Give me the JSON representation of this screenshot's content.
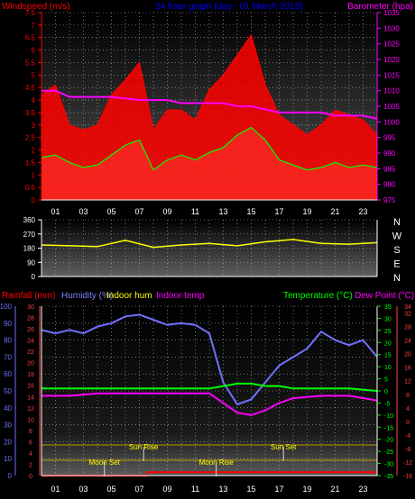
{
  "chart_data": [
    {
      "type": "line",
      "panel": "wind-baro",
      "title": "24 hour graph (day - 01 March 2015)",
      "left_axis": {
        "label": "Windspeed (m/s)",
        "range": [
          0,
          7.5
        ],
        "ticks": [
          "0",
          "0.5",
          "1",
          "1.5",
          "2",
          "2.5",
          "3",
          "3.5",
          "4",
          "4.5",
          "5",
          "5.5",
          "6",
          "6.5",
          "7",
          "7.5"
        ]
      },
      "right_axis": {
        "label": "Barometer (hpa)",
        "range": [
          975,
          1035
        ],
        "ticks": [
          "975",
          "980",
          "985",
          "990",
          "995",
          "1000",
          "1005",
          "1010",
          "1015",
          "1020",
          "1025",
          "1030",
          "1035"
        ]
      },
      "x_ticks": [
        "01",
        "03",
        "05",
        "07",
        "09",
        "11",
        "13",
        "15",
        "17",
        "19",
        "21",
        "23"
      ],
      "x_range": [
        0,
        24
      ],
      "wind_avg": {
        "x": [
          0,
          1,
          2,
          3,
          4,
          5,
          6,
          7,
          8,
          9,
          10,
          11,
          12,
          13,
          14,
          15,
          16,
          17,
          18,
          19,
          20,
          21,
          22,
          23,
          24
        ],
        "y": [
          1.7,
          1.8,
          1.5,
          1.3,
          1.4,
          1.8,
          2.2,
          2.4,
          1.2,
          1.6,
          1.8,
          1.6,
          1.9,
          2.1,
          2.6,
          2.9,
          2.4,
          1.6,
          1.4,
          1.2,
          1.3,
          1.5,
          1.3,
          1.4,
          1.3
        ]
      },
      "wind_gust": {
        "x": [
          0,
          1,
          2,
          3,
          4,
          5,
          6,
          7,
          8,
          9,
          10,
          11,
          12,
          13,
          14,
          15,
          16,
          17,
          18,
          19,
          20,
          21,
          22,
          23,
          24
        ],
        "y": [
          4.2,
          4.6,
          3.0,
          2.8,
          3.0,
          4.2,
          4.8,
          5.5,
          2.8,
          3.6,
          3.6,
          3.2,
          4.4,
          5.0,
          5.8,
          6.6,
          4.6,
          3.4,
          3.0,
          2.6,
          3.0,
          3.6,
          3.4,
          3.2,
          2.6
        ]
      },
      "barometer": {
        "x": [
          0,
          1,
          1.5,
          2,
          3,
          5,
          7,
          8,
          9,
          10,
          11,
          12,
          13,
          14,
          15,
          16,
          17,
          18,
          19,
          20,
          21,
          22,
          23,
          24
        ],
        "y": [
          1010,
          1010,
          1009,
          1008,
          1008,
          1008,
          1007,
          1007,
          1007,
          1006,
          1006,
          1006,
          1006,
          1005,
          1005,
          1004,
          1003,
          1003,
          1003,
          1003,
          1002,
          1002,
          1002,
          1001
        ]
      },
      "colors": {
        "wind_gust": "#ff0000",
        "wind_avg": "#00ff00",
        "wind_fill": "#d2f5d2",
        "barometer": "#ff00ff",
        "axis_left": "#ff0000",
        "axis_right": "#ff00ff",
        "title": "#0000ff"
      }
    },
    {
      "type": "line",
      "panel": "wind-direction",
      "left_axis": {
        "range": [
          0,
          360
        ],
        "ticks": [
          "0",
          "90",
          "180",
          "270",
          "360"
        ]
      },
      "right_labels": [
        "N",
        "W",
        "S",
        "E",
        "N"
      ],
      "x_range": [
        0,
        24
      ],
      "direction": {
        "x": [
          0,
          2,
          4,
          6,
          8,
          10,
          12,
          14,
          16,
          18,
          20,
          22,
          24
        ],
        "y": [
          200,
          195,
          190,
          230,
          185,
          200,
          210,
          195,
          220,
          235,
          210,
          205,
          215
        ]
      },
      "colors": {
        "direction": "#ffff00",
        "axis": "#ffffff"
      }
    },
    {
      "type": "line",
      "panel": "temp-humidity",
      "header_labels": [
        {
          "text": "Rainfall (mm)",
          "color": "#ff0000"
        },
        {
          "text": "Humidity (%)",
          "color": "#8080ff"
        },
        {
          "text": "Indoor hum",
          "color": "#ffff00"
        },
        {
          "text": "Indoor temp",
          "color": "#ff00ff"
        },
        {
          "text": "Temperature (°C)",
          "color": "#00ff00"
        },
        {
          "text": "Dew Point (°C)",
          "color": "#ff00ff"
        }
      ],
      "humidity_axis": {
        "range": [
          0,
          100
        ],
        "ticks": [
          "0",
          "10",
          "20",
          "30",
          "40",
          "50",
          "60",
          "70",
          "80",
          "90",
          "100"
        ]
      },
      "rain_axis": {
        "range": [
          0,
          30
        ],
        "ticks": [
          "0",
          "2",
          "4",
          "6",
          "8",
          "10",
          "12",
          "14",
          "16",
          "18",
          "20",
          "22",
          "24",
          "26",
          "28",
          "30"
        ]
      },
      "temp_axis": {
        "range": [
          -35,
          35
        ],
        "ticks": [
          "-35",
          "-30",
          "-25",
          "-20",
          "-15",
          "-10",
          "-5",
          "0",
          "5",
          "10",
          "15",
          "20",
          "25",
          "30",
          "35"
        ]
      },
      "indoor_axis": {
        "range": [
          -16,
          34
        ],
        "ticks": [
          "-16",
          "-12",
          "-8",
          "-4",
          "0",
          "4",
          "8",
          "12",
          "16",
          "20",
          "24",
          "28",
          "32",
          "34"
        ]
      },
      "x_ticks": [
        "01",
        "03",
        "05",
        "07",
        "09",
        "11",
        "13",
        "15",
        "17",
        "19",
        "21",
        "23"
      ],
      "x_range": [
        0,
        24
      ],
      "humidity": {
        "x": [
          0,
          1,
          2,
          3,
          4,
          5,
          6,
          7,
          8,
          9,
          10,
          11,
          12,
          13,
          14,
          15,
          16,
          17,
          18,
          19,
          20,
          21,
          22,
          23,
          24
        ],
        "y": [
          86,
          84,
          86,
          84,
          88,
          90,
          94,
          95,
          92,
          89,
          90,
          89,
          84,
          55,
          42,
          45,
          55,
          65,
          70,
          75,
          85,
          80,
          77,
          80,
          70
        ]
      },
      "temperature": {
        "x": [
          0,
          2,
          4,
          6,
          8,
          10,
          12,
          13,
          14,
          15,
          16,
          17,
          18,
          20,
          22,
          24
        ],
        "y": [
          1,
          1,
          1,
          1,
          1,
          1,
          1,
          2,
          3,
          3,
          2,
          2,
          1,
          1,
          1,
          0
        ]
      },
      "dew_point": {
        "x": [
          0,
          2,
          4,
          6,
          8,
          10,
          12,
          13,
          14,
          15,
          16,
          17,
          18,
          20,
          22,
          24
        ],
        "y": [
          -2,
          -2,
          -1,
          -1,
          -1,
          -1,
          -1,
          -5,
          -9,
          -10,
          -8,
          -5,
          -3,
          -2,
          -2,
          -4
        ]
      },
      "rainfall": {
        "x": [
          0,
          7.5,
          7.6,
          24
        ],
        "y": [
          0,
          0,
          0.6,
          0.6
        ]
      },
      "events": [
        {
          "label": "Moon Set",
          "x": 4.5,
          "row": "lower"
        },
        {
          "label": "Sun Rise",
          "x": 7.3,
          "row": "upper"
        },
        {
          "label": "Moon Rise",
          "x": 12.5,
          "row": "lower"
        },
        {
          "label": "Sun Set",
          "x": 17.3,
          "row": "upper"
        }
      ],
      "colors": {
        "humidity": "#7070ff",
        "temperature": "#00ff00",
        "dew_point": "#ff00ff",
        "rainfall": "#ff0000"
      }
    }
  ]
}
